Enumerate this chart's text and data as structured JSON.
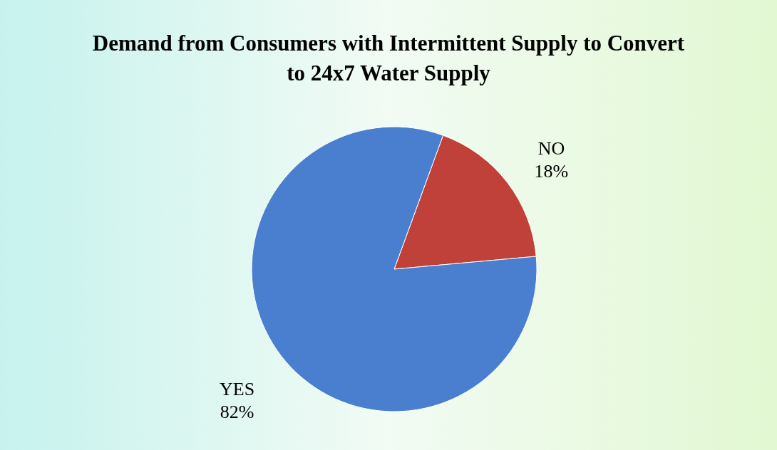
{
  "chart_data": {
    "type": "pie",
    "title": "Demand from Consumers with Intermittent Supply to Convert to 24x7 Water Supply",
    "categories": [
      "NO",
      "YES"
    ],
    "values": [
      18,
      82
    ],
    "colors": [
      "#c0403a",
      "#4a7fcf"
    ],
    "value_labels": [
      "18%",
      "82%"
    ],
    "legend": false
  }
}
